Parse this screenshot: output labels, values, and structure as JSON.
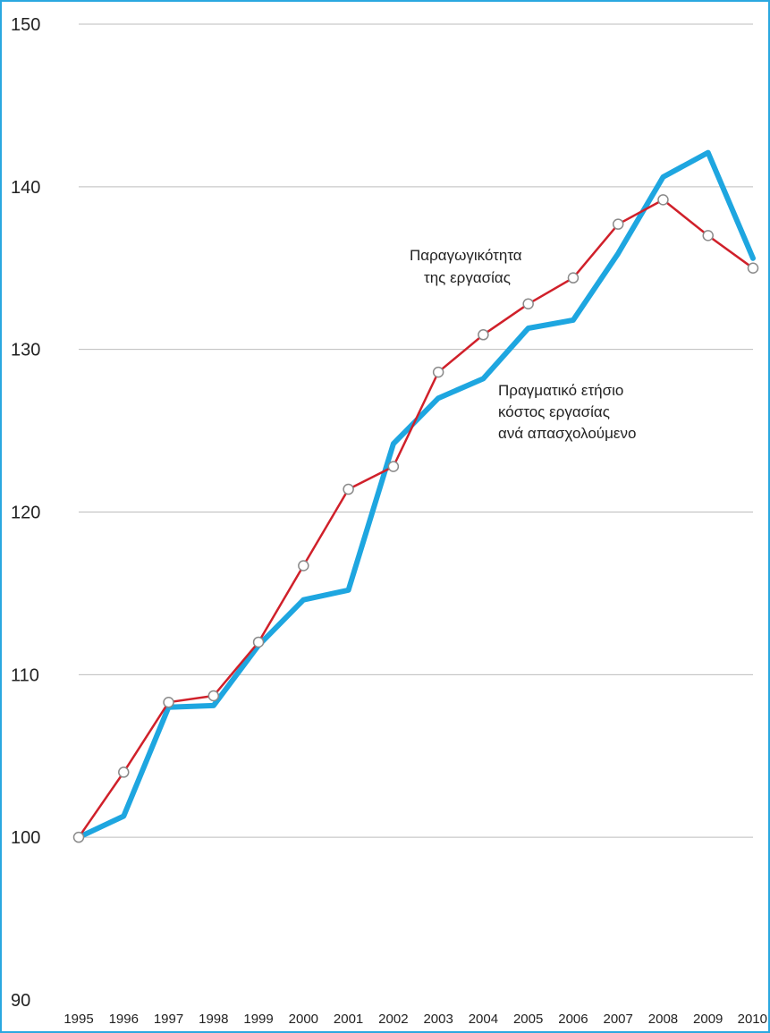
{
  "chart_data": {
    "type": "line",
    "x": [
      "1995",
      "1996",
      "1997",
      "1998",
      "1999",
      "2000",
      "2001",
      "2002",
      "2003",
      "2004",
      "2005",
      "2006",
      "2007",
      "2008",
      "2009",
      "2010"
    ],
    "ylim": [
      90,
      150
    ],
    "yticks": [
      "90",
      "100",
      "110",
      "120",
      "130",
      "140",
      "150"
    ],
    "grid": true,
    "series": [
      {
        "name": "Παραγωγικότητα της εργασίας",
        "name_lines": [
          "Παραγωγικότητα",
          "της εργασίας"
        ],
        "color": "#d0202a",
        "markers": true,
        "values": [
          100,
          104,
          108.3,
          108.7,
          112,
          116.7,
          121.4,
          122.8,
          128.6,
          130.9,
          132.8,
          134.4,
          137.7,
          139.2,
          137,
          135
        ]
      },
      {
        "name": "Πραγματικό ετήσιο κόστος εργασίας ανά απασχολούμενο",
        "name_lines": [
          "Πραγματικό ετήσιο",
          "κόστος εργασίας",
          "ανά απασχολούμενο"
        ],
        "color": "#1ea6e0",
        "markers": false,
        "values": [
          100,
          101.3,
          108,
          108.1,
          111.8,
          114.6,
          115.2,
          124.2,
          127,
          128.2,
          131.3,
          131.8,
          135.9,
          140.6,
          142.1,
          135.6
        ]
      }
    ]
  }
}
